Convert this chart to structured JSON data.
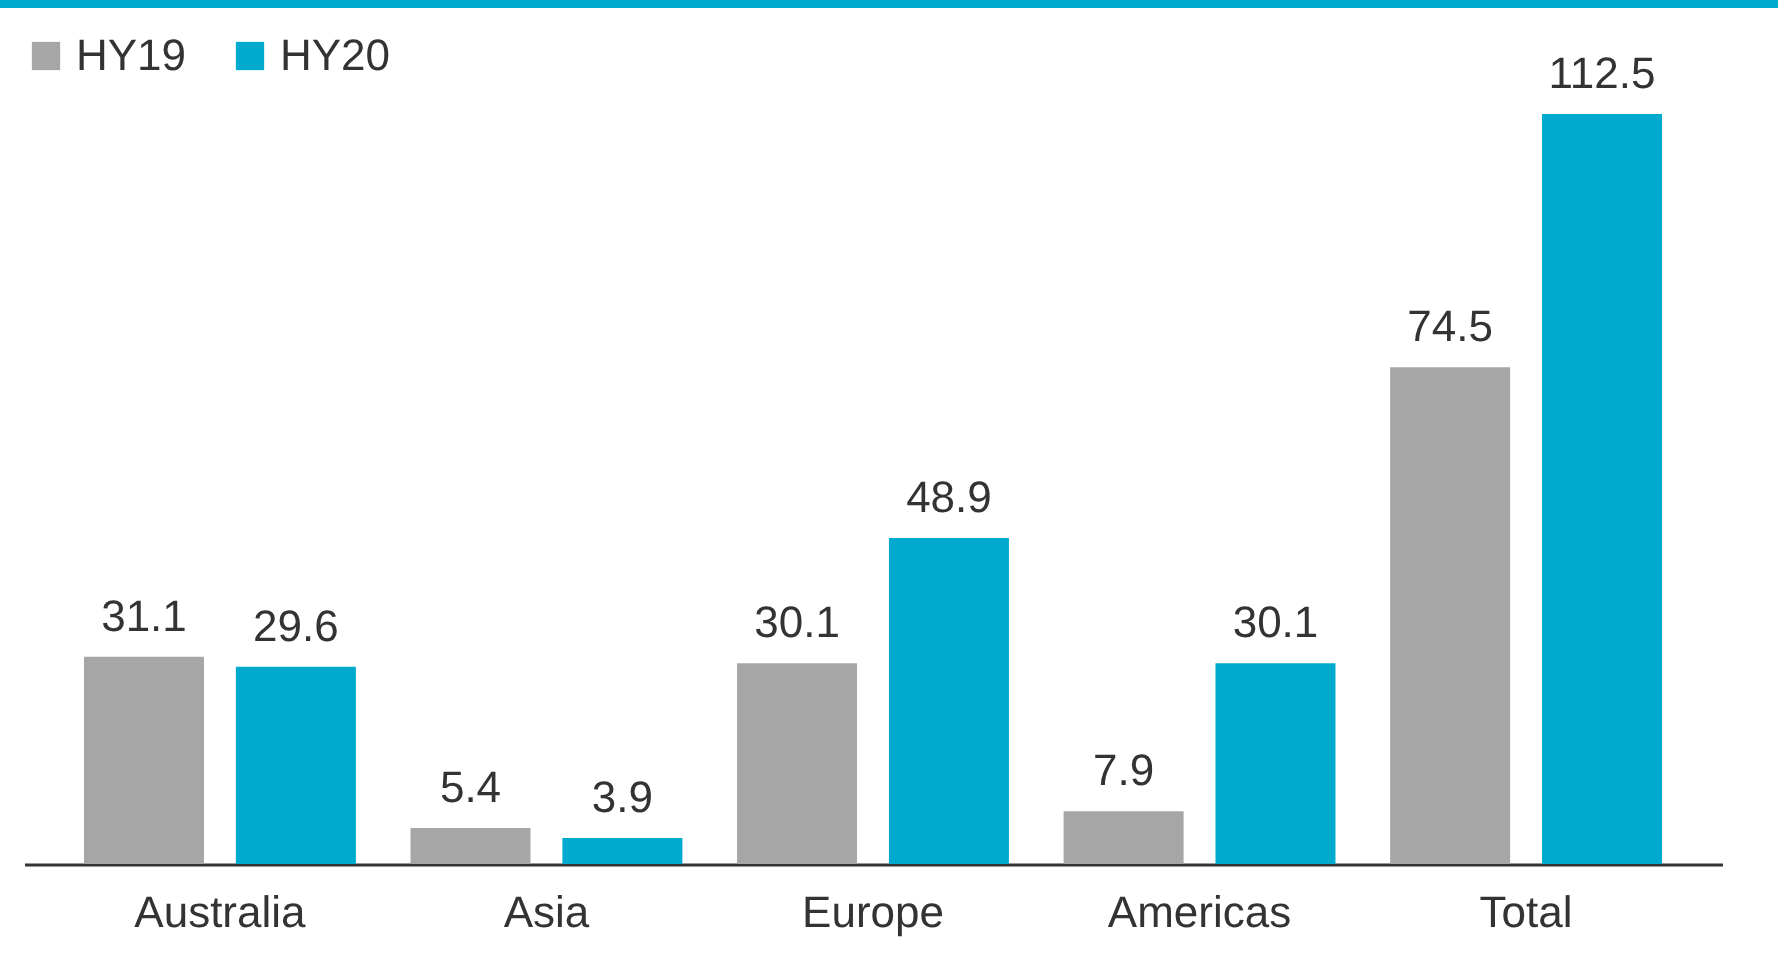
{
  "chart_data": {
    "type": "bar",
    "categories": [
      "Australia",
      "Asia",
      "Europe",
      "Americas",
      "Total"
    ],
    "series": [
      {
        "name": "HY19",
        "color": "#a6a6a6",
        "values": [
          31.1,
          5.4,
          30.1,
          7.9,
          74.5
        ]
      },
      {
        "name": "HY20",
        "color": "#00a9ce",
        "values": [
          29.6,
          3.9,
          48.9,
          30.1,
          112.5
        ]
      }
    ],
    "data_labels": true,
    "legend": "top",
    "grid": false
  }
}
